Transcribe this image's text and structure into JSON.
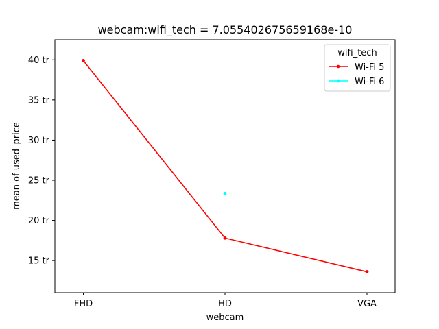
{
  "chart_data": {
    "type": "line",
    "title": "webcam:wifi_tech = 7.055402675659168e-10",
    "xlabel": "webcam",
    "ylabel": "mean of used_price",
    "categories": [
      "FHD",
      "HD",
      "VGA"
    ],
    "ylim": [
      11,
      42.5
    ],
    "yticks": [
      15,
      20,
      25,
      30,
      35,
      40
    ],
    "ytick_labels": [
      "15 tr",
      "20 tr",
      "25 tr",
      "30 tr",
      "35 tr",
      "40 tr"
    ],
    "legend_title": "wifi_tech",
    "legend_position": "top-right",
    "grid": false,
    "series": [
      {
        "name": "Wi-Fi 5",
        "color": "#ff0000",
        "values": [
          39.9,
          17.8,
          13.6
        ]
      },
      {
        "name": "Wi-Fi 6",
        "color": "#00ffff",
        "values": [
          null,
          23.35,
          null
        ]
      }
    ]
  }
}
